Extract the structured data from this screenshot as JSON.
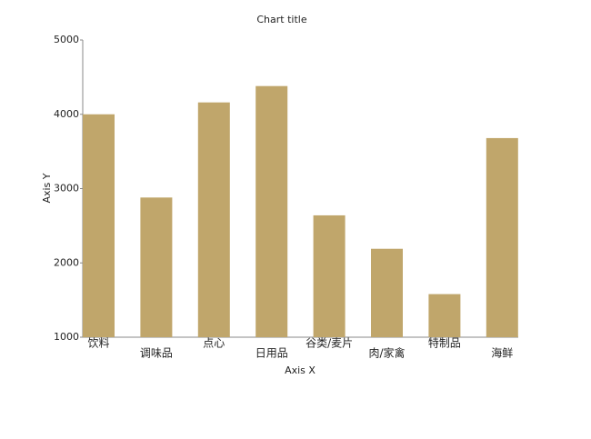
{
  "chart_data": {
    "type": "bar",
    "title": "Chart title",
    "x_label": "Axis X",
    "y_label": "Axis Y",
    "categories": [
      "饮料",
      "调味品",
      "点心",
      "日用品",
      "谷类/麦片",
      "肉/家禽",
      "特制品",
      "海鲜"
    ],
    "values": [
      4000,
      2880,
      4160,
      4380,
      2640,
      2190,
      1580,
      3680
    ],
    "color": "#c0a66b",
    "ylim": [
      1000,
      5000
    ],
    "yticks": [
      1000,
      2000,
      3000,
      4000,
      5000
    ],
    "grid": false
  }
}
